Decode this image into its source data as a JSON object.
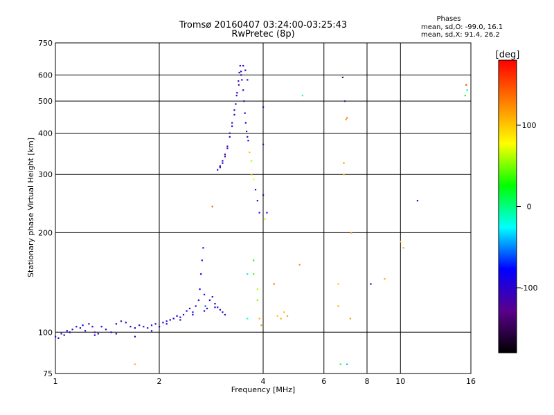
{
  "chart_data": {
    "type": "scatter",
    "title": "Tromsø 20160407 03:24:00-03:25:43",
    "subtitle": "RwPretec (8p)",
    "xlabel": "Frequency [MHz]",
    "ylabel": "Stationary phase Virtual Height [km]",
    "x_scale": "log",
    "y_scale": "log",
    "xlim": [
      1,
      16
    ],
    "ylim": [
      75,
      750
    ],
    "x_ticks": [
      1,
      2,
      4,
      6,
      8,
      10,
      16
    ],
    "x_tick_labels": [
      "1",
      "2",
      "4",
      "6",
      "8",
      "10",
      "16"
    ],
    "y_ticks": [
      75,
      100,
      200,
      300,
      400,
      500,
      600,
      750
    ],
    "y_tick_labels": [
      "75",
      "100",
      "200",
      "300",
      "400",
      "500",
      "600",
      "750"
    ],
    "grid": true,
    "stats": {
      "heading": "Phases",
      "line_o": "mean, sd,O: -99.0, 16.1",
      "line_x": "mean, sd,X:  91.4, 26.2"
    },
    "colorbar": {
      "label": "[deg]",
      "range": [
        -180,
        180
      ],
      "ticks": [
        100,
        0,
        -100
      ],
      "tick_labels": [
        "100",
        "0",
        "-100"
      ],
      "colors": [
        "#ff0000",
        "#ff7f00",
        "#ffff00",
        "#00ff00",
        "#00ffff",
        "#0000ff",
        "#5a008c",
        "#000000"
      ]
    },
    "series": [
      {
        "points": [
          [
            1.0,
            97,
            -95
          ],
          [
            1.02,
            96,
            -105
          ],
          [
            1.04,
            99,
            -90
          ],
          [
            1.06,
            98,
            -110
          ],
          [
            1.08,
            101,
            -85
          ],
          [
            1.1,
            100,
            -100
          ],
          [
            1.12,
            102,
            -120
          ],
          [
            1.15,
            104,
            -95
          ],
          [
            1.18,
            103,
            -105
          ],
          [
            1.2,
            105,
            -80
          ],
          [
            1.22,
            101,
            -100
          ],
          [
            1.25,
            106,
            -110
          ],
          [
            1.28,
            104,
            -90
          ],
          [
            1.3,
            100,
            -125
          ],
          [
            1.33,
            99,
            -100
          ],
          [
            1.36,
            104,
            -95
          ],
          [
            1.4,
            102,
            -105
          ],
          [
            1.45,
            100,
            -90
          ],
          [
            1.5,
            106,
            -100
          ],
          [
            1.55,
            108,
            -115
          ],
          [
            1.6,
            107,
            -95
          ],
          [
            1.65,
            104,
            -100
          ],
          [
            1.7,
            103,
            -85
          ],
          [
            1.75,
            105,
            -100
          ],
          [
            1.8,
            104,
            -110
          ],
          [
            1.85,
            103,
            -95
          ],
          [
            1.9,
            105,
            -100
          ],
          [
            1.95,
            106,
            -90
          ],
          [
            2.0,
            104,
            -100
          ],
          [
            2.05,
            107,
            -110
          ],
          [
            2.1,
            108,
            -95
          ],
          [
            2.15,
            109,
            -100
          ],
          [
            2.2,
            110,
            -85
          ],
          [
            2.25,
            112,
            -100
          ],
          [
            2.3,
            111,
            -95
          ],
          [
            2.35,
            113,
            -105
          ],
          [
            2.4,
            116,
            -90
          ],
          [
            2.45,
            118,
            -100
          ],
          [
            2.5,
            115,
            -80
          ],
          [
            2.55,
            120,
            -95
          ],
          [
            2.6,
            125,
            -100
          ],
          [
            2.62,
            135,
            -90
          ],
          [
            2.64,
            150,
            -85
          ],
          [
            2.66,
            165,
            -95
          ],
          [
            2.68,
            180,
            -100
          ],
          [
            2.7,
            130,
            -70
          ],
          [
            2.72,
            120,
            -60
          ],
          [
            2.75,
            118,
            -100
          ],
          [
            2.8,
            125,
            -90
          ],
          [
            2.85,
            128,
            -95
          ],
          [
            2.9,
            122,
            -100
          ],
          [
            2.95,
            119,
            -110
          ],
          [
            3.0,
            117,
            -100
          ],
          [
            3.05,
            115,
            -95
          ],
          [
            3.1,
            113,
            -105
          ],
          [
            1.1,
            100,
            -100
          ],
          [
            1.3,
            98,
            -95
          ],
          [
            1.5,
            99,
            -105
          ],
          [
            1.7,
            97,
            -100
          ],
          [
            1.9,
            101,
            -90
          ],
          [
            2.1,
            106,
            -100
          ],
          [
            2.3,
            109,
            -110
          ],
          [
            2.5,
            113,
            -95
          ],
          [
            2.7,
            116,
            -100
          ],
          [
            2.9,
            119,
            -85
          ],
          [
            2.95,
            310,
            -95
          ],
          [
            3.0,
            318,
            -100
          ],
          [
            3.05,
            330,
            -90
          ],
          [
            3.1,
            345,
            -110
          ],
          [
            3.15,
            365,
            -100
          ],
          [
            3.2,
            390,
            -95
          ],
          [
            3.25,
            420,
            -85
          ],
          [
            3.3,
            455,
            -100
          ],
          [
            3.33,
            490,
            -90
          ],
          [
            3.36,
            530,
            -100
          ],
          [
            3.39,
            575,
            -95
          ],
          [
            3.41,
            610,
            -100
          ],
          [
            3.43,
            640,
            -105
          ],
          [
            3.45,
            615,
            -95
          ],
          [
            3.47,
            580,
            -100
          ],
          [
            3.5,
            540,
            -90
          ],
          [
            3.52,
            500,
            -100
          ],
          [
            3.54,
            460,
            -95
          ],
          [
            3.56,
            430,
            -100
          ],
          [
            3.58,
            405,
            -110
          ],
          [
            3.6,
            390,
            -95
          ],
          [
            3.62,
            380,
            -100
          ],
          [
            3.2,
            400,
            -120
          ],
          [
            3.25,
            430,
            -125
          ],
          [
            3.3,
            470,
            -115
          ],
          [
            3.35,
            520,
            -120
          ],
          [
            3.4,
            560,
            -125
          ],
          [
            3.45,
            600,
            -120
          ],
          [
            3.5,
            640,
            -100
          ],
          [
            3.55,
            620,
            -95
          ],
          [
            3.6,
            580,
            -100
          ],
          [
            3.15,
            360,
            -125
          ],
          [
            3.1,
            340,
            -130
          ],
          [
            3.05,
            325,
            -120
          ],
          [
            3.0,
            315,
            -110
          ]
        ]
      },
      {
        "points": [
          [
            3.6,
            110,
            -20
          ],
          [
            3.6,
            150,
            -30
          ],
          [
            3.75,
            165,
            20
          ],
          [
            3.75,
            150,
            40
          ],
          [
            3.85,
            135,
            60
          ],
          [
            3.85,
            125,
            50
          ],
          [
            3.9,
            110,
            110
          ],
          [
            3.95,
            105,
            120
          ],
          [
            4.3,
            140,
            130
          ],
          [
            4.4,
            112,
            100
          ],
          [
            4.5,
            110,
            110
          ],
          [
            4.6,
            115,
            105
          ],
          [
            4.7,
            112,
            115
          ],
          [
            5.1,
            160,
            120
          ],
          [
            6.6,
            140,
            100
          ],
          [
            6.6,
            120,
            110
          ],
          [
            6.85,
            325,
            115
          ],
          [
            6.85,
            300,
            105
          ],
          [
            6.95,
            440,
            120
          ],
          [
            7.0,
            445,
            130
          ],
          [
            7.15,
            110,
            120
          ],
          [
            7.2,
            200,
            125
          ],
          [
            8.2,
            140,
            -100
          ],
          [
            9.0,
            145,
            110
          ],
          [
            10.0,
            188,
            100
          ],
          [
            10.2,
            180,
            110
          ],
          [
            11.2,
            250,
            -100
          ],
          [
            15.5,
            560,
            150
          ],
          [
            15.6,
            540,
            -10
          ],
          [
            15.4,
            520,
            30
          ],
          [
            5.2,
            520,
            -20
          ],
          [
            6.8,
            590,
            -140
          ],
          [
            6.9,
            500,
            -120
          ],
          [
            7.0,
            80,
            -40
          ],
          [
            3.65,
            350,
            100
          ],
          [
            3.7,
            330,
            60
          ],
          [
            3.7,
            300,
            110
          ],
          [
            3.75,
            290,
            80
          ],
          [
            3.8,
            270,
            -100
          ],
          [
            3.85,
            250,
            -110
          ],
          [
            3.9,
            230,
            -105
          ],
          [
            4.0,
            480,
            -100
          ],
          [
            4.0,
            370,
            -120
          ],
          [
            4.0,
            260,
            -110
          ],
          [
            4.05,
            220,
            90
          ],
          [
            4.1,
            230,
            -100
          ],
          [
            1.7,
            80,
            110
          ],
          [
            2.85,
            240,
            140
          ],
          [
            6.7,
            80,
            10
          ]
        ]
      }
    ]
  }
}
